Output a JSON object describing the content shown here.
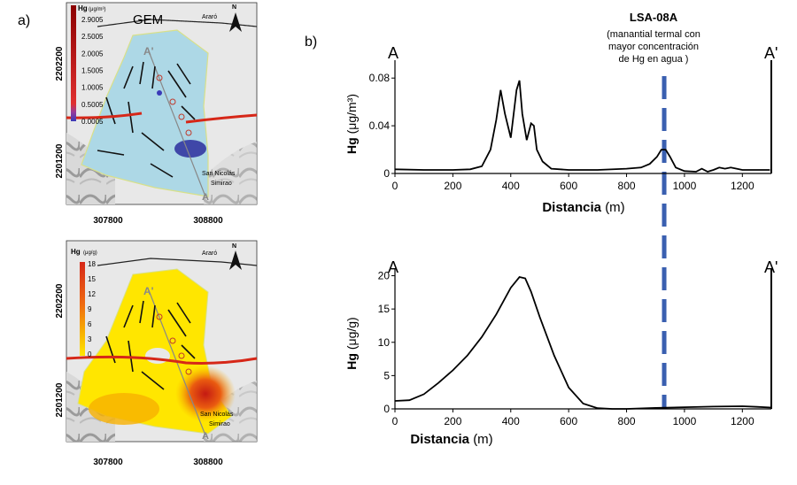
{
  "panel_a_label": "a)",
  "panel_b_label": "b)",
  "maps": [
    {
      "title": "GEM",
      "north": "N",
      "town_top": "Araró",
      "town_bottom_1": "San Nicolás",
      "town_bottom_2": "Simirao",
      "profile_label": "A'",
      "profile_label_end": "A",
      "legend_title": "Hg",
      "legend_unit": "(μg/m³)",
      "legend_values": [
        "2.9005",
        "2.5005",
        "2.0005",
        "1.5005",
        "1.0005",
        "0.5005",
        "0.0005"
      ],
      "y_ticks": [
        "2202200",
        "2201200"
      ],
      "x_ticks": [
        "307800",
        "308800"
      ],
      "colors": {
        "fill": "#add8e6",
        "high": "#2b2e9c",
        "legend_top": "#b22222",
        "legend_bottom": "#3a3ab8"
      }
    },
    {
      "north": "N",
      "town_top": "Araró",
      "town_bottom_1": "San Nicolás",
      "town_bottom_2": "Simirao",
      "profile_label": "A'",
      "profile_label_end": "A",
      "legend_title": "Hg",
      "legend_unit": "(μg/g)",
      "legend_values": [
        "18",
        "15",
        "12",
        "9",
        "6",
        "3",
        "0"
      ],
      "y_ticks": [
        "2202200",
        "2201200"
      ],
      "x_ticks": [
        "307800",
        "308800"
      ],
      "colors": {
        "low": "#ffe600",
        "mid": "#f7a800",
        "high": "#d62718"
      }
    }
  ],
  "annotation": {
    "title": "LSA-08A",
    "lines": [
      "(manantial termal con",
      "mayor concentración",
      "de Hg en agua )"
    ],
    "x": 930,
    "color": "#3a5fb0"
  },
  "chart_data": [
    {
      "type": "line",
      "ylabel": "Hg (μg/m³)",
      "ylabel_main": "Hg",
      "ylabel_unit": "(μg/m³)",
      "xlabel_main": "Distancia",
      "xlabel_unit": "(m)",
      "start_label": "A",
      "end_label": "A'",
      "xlim": [
        0,
        1300
      ],
      "ylim": [
        0,
        0.095
      ],
      "x_ticks": [
        0,
        200,
        400,
        600,
        800,
        1000,
        1200
      ],
      "y_ticks": [
        0,
        0.04,
        0.08
      ],
      "y_tick_labels": [
        "0",
        "0.04",
        "0.08"
      ],
      "x": [
        0,
        100,
        200,
        260,
        300,
        330,
        350,
        365,
        380,
        400,
        420,
        430,
        440,
        455,
        470,
        480,
        490,
        510,
        540,
        600,
        700,
        800,
        850,
        880,
        905,
        920,
        935,
        950,
        970,
        1000,
        1040,
        1060,
        1080,
        1100,
        1120,
        1140,
        1160,
        1180,
        1200,
        1240,
        1280,
        1295
      ],
      "y": [
        0.0035,
        0.003,
        0.003,
        0.0035,
        0.006,
        0.02,
        0.045,
        0.07,
        0.05,
        0.03,
        0.07,
        0.078,
        0.05,
        0.028,
        0.042,
        0.04,
        0.02,
        0.01,
        0.004,
        0.003,
        0.003,
        0.004,
        0.005,
        0.008,
        0.014,
        0.02,
        0.02,
        0.014,
        0.005,
        0.002,
        0.0015,
        0.004,
        0.0015,
        0.003,
        0.005,
        0.004,
        0.005,
        0.004,
        0.003,
        0.003,
        0.003,
        0.003
      ]
    },
    {
      "type": "line",
      "ylabel": "Hg (μg/g)",
      "ylabel_main": "Hg",
      "ylabel_unit": "(μg/g)",
      "xlabel_main": "Distancia",
      "xlabel_unit": "(m)",
      "start_label": "A",
      "end_label": "A'",
      "xlim": [
        0,
        1300
      ],
      "ylim": [
        0,
        21
      ],
      "x_ticks": [
        0,
        200,
        400,
        600,
        800,
        1000,
        1200
      ],
      "y_ticks": [
        0,
        5,
        10,
        15,
        20
      ],
      "y_tick_labels": [
        "0",
        "5",
        "10",
        "15",
        "20"
      ],
      "x": [
        0,
        50,
        100,
        150,
        200,
        250,
        300,
        350,
        400,
        430,
        450,
        470,
        500,
        550,
        600,
        650,
        700,
        750,
        800,
        900,
        1000,
        1100,
        1200,
        1250,
        1300
      ],
      "y": [
        1.2,
        1.3,
        2.2,
        3.9,
        5.8,
        8,
        10.8,
        14.2,
        18.2,
        19.8,
        19.6,
        17.6,
        13.8,
        8,
        3.2,
        0.8,
        0.1,
        0,
        0,
        0.15,
        0.25,
        0.35,
        0.4,
        0.3,
        0.2
      ]
    }
  ]
}
